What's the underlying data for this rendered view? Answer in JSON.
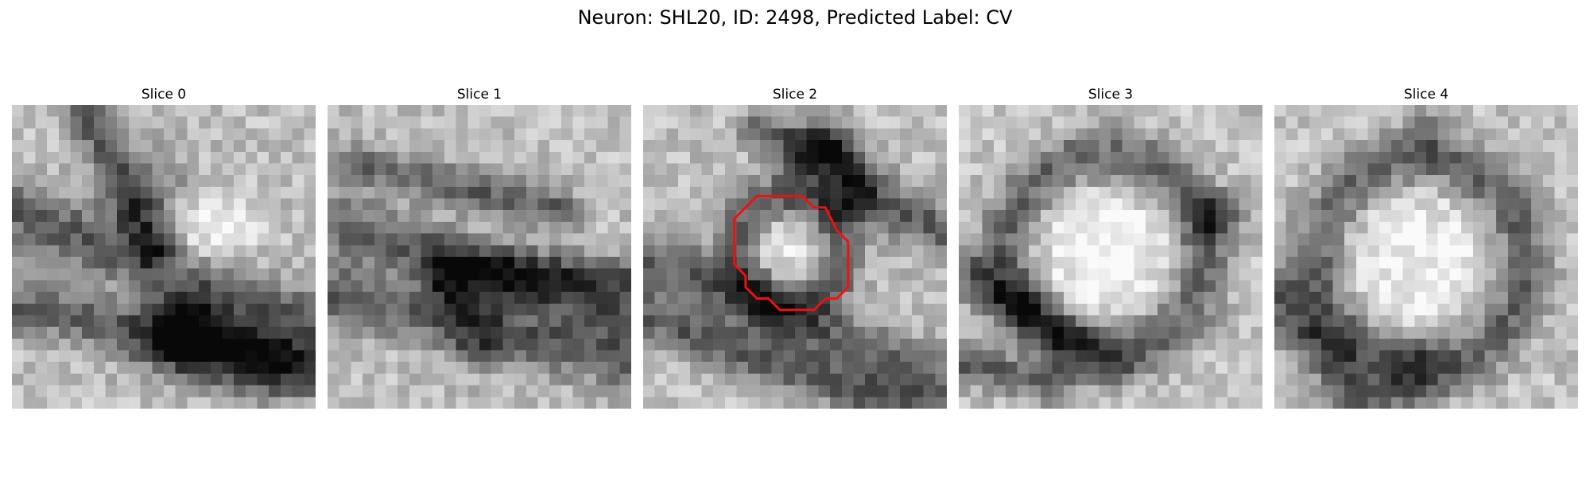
{
  "figure": {
    "title": "Neuron: SHL20, ID: 2498, Predicted Label: CV"
  },
  "panels": [
    {
      "title": "Slice 0",
      "image": "grayscale-em-slice-pixelated",
      "has_contour": false
    },
    {
      "title": "Slice 1",
      "image": "grayscale-em-slice-pixelated",
      "has_contour": false
    },
    {
      "title": "Slice 2",
      "image": "grayscale-em-slice-pixelated",
      "has_contour": true
    },
    {
      "title": "Slice 3",
      "image": "grayscale-em-slice-pixelated",
      "has_contour": false
    },
    {
      "title": "Slice 4",
      "image": "grayscale-em-slice-pixelated",
      "has_contour": false
    }
  ],
  "contour": {
    "color": "#ee1111"
  }
}
